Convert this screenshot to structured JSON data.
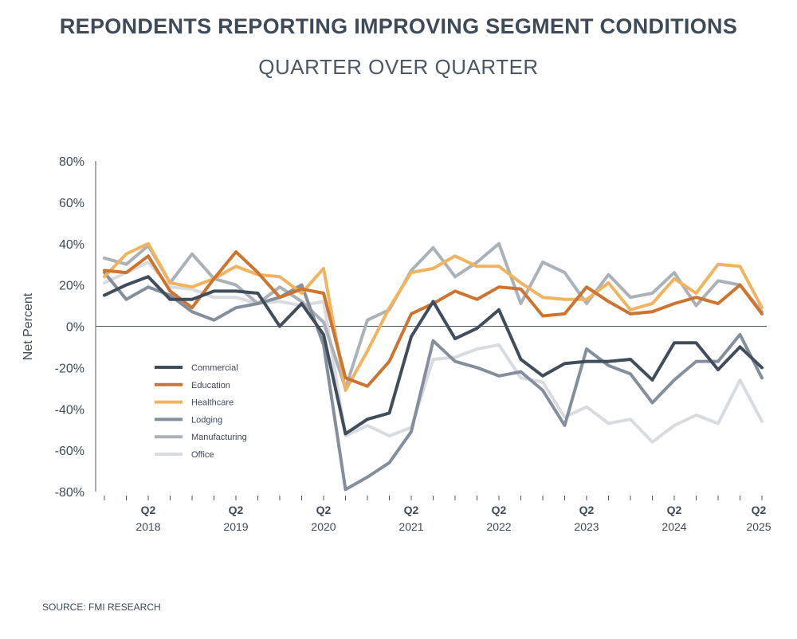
{
  "title": "REPONDENTS REPORTING IMPROVING SEGMENT CONDITIONS",
  "subtitle": "QUARTER OVER QUARTER",
  "source": "SOURCE: FMI RESEARCH",
  "chart_data": {
    "type": "line",
    "title": "REPONDENTS REPORTING IMPROVING SEGMENT CONDITIONS",
    "subtitle": "QUARTER OVER QUARTER",
    "xlabel": "",
    "ylabel": "Net Percent",
    "ylim": [
      -80,
      80
    ],
    "yticks": [
      80,
      60,
      40,
      20,
      0,
      -20,
      -40,
      -60,
      -80
    ],
    "ytick_labels": [
      "80%",
      "60%",
      "40%",
      "20%",
      "0%",
      "-20%",
      "-40%",
      "-60%",
      "-80%"
    ],
    "x_quarters": [
      "2017 Q4",
      "2018 Q1",
      "2018 Q2",
      "2018 Q3",
      "2018 Q4",
      "2019 Q1",
      "2019 Q2",
      "2019 Q3",
      "2019 Q4",
      "2020 Q1",
      "2020 Q2",
      "2020 Q3",
      "2020 Q4",
      "2021 Q1",
      "2021 Q2",
      "2021 Q3",
      "2021 Q4",
      "2022 Q1",
      "2022 Q2",
      "2022 Q3",
      "2022 Q4",
      "2023 Q1",
      "2023 Q2",
      "2023 Q3",
      "2023 Q4",
      "2024 Q1",
      "2024 Q2",
      "2024 Q3",
      "2024 Q4",
      "2025 Q1",
      "2025 Q2"
    ],
    "x_tick_labels": [
      {
        "q": "Q2",
        "year": "2018",
        "index": 2
      },
      {
        "q": "Q2",
        "year": "2019",
        "index": 6
      },
      {
        "q": "Q2",
        "year": "2020",
        "index": 10
      },
      {
        "q": "Q2",
        "year": "2021",
        "index": 14
      },
      {
        "q": "Q2",
        "year": "2022",
        "index": 18
      },
      {
        "q": "Q2",
        "year": "2023",
        "index": 22
      },
      {
        "q": "Q2",
        "year": "2024",
        "index": 26
      },
      {
        "q": "Q2",
        "year": "2025",
        "index": 30
      }
    ],
    "legend_position": "center-left",
    "series": [
      {
        "name": "Commercial",
        "color": "#414d5b",
        "values": [
          15,
          20,
          24,
          13,
          13,
          17,
          17,
          16,
          0,
          11,
          -4,
          -52,
          -45,
          -42,
          -5,
          12,
          -6,
          -1,
          8,
          -16,
          -24,
          -18,
          -17,
          -17,
          -16,
          -26,
          -8,
          -8,
          -21,
          -10,
          -20
        ]
      },
      {
        "name": "Education",
        "color": "#cc7430",
        "values": [
          27,
          26,
          34,
          17,
          9,
          23,
          36,
          26,
          14,
          18,
          16,
          -25,
          -29,
          -17,
          6,
          11,
          17,
          13,
          19,
          18,
          5,
          6,
          19,
          12,
          6,
          7,
          11,
          14,
          11,
          20,
          6
        ]
      },
      {
        "name": "Healthcare",
        "color": "#f0b45f",
        "values": [
          24,
          35,
          40,
          21,
          19,
          23,
          29,
          25,
          24,
          16,
          28,
          -31,
          -12,
          9,
          26,
          28,
          34,
          29,
          29,
          21,
          14,
          13,
          13,
          21,
          8,
          11,
          23,
          16,
          30,
          29,
          9
        ]
      },
      {
        "name": "Lodging",
        "color": "#858f9c",
        "values": [
          26,
          13,
          19,
          15,
          7,
          3,
          9,
          11,
          14,
          20,
          -9,
          -79,
          -73,
          -66,
          -51,
          -7,
          -17,
          -20,
          -24,
          -22,
          -31,
          -48,
          -11,
          -19,
          -23,
          -37,
          -26,
          -17,
          -17,
          -4,
          -25
        ]
      },
      {
        "name": "Manufacturing",
        "color": "#abb1b8",
        "values": [
          33,
          30,
          39,
          21,
          35,
          23,
          20,
          11,
          19,
          12,
          2,
          -30,
          3,
          8,
          27,
          38,
          24,
          31,
          40,
          11,
          31,
          26,
          11,
          25,
          14,
          16,
          26,
          10,
          22,
          20,
          7
        ]
      },
      {
        "name": "Office",
        "color": "#d8dbdf",
        "values": [
          21,
          26,
          31,
          19,
          18,
          14,
          14,
          11,
          12,
          10,
          12,
          -53,
          -48,
          -53,
          -49,
          -16,
          -15,
          -11,
          -9,
          -25,
          -27,
          -44,
          -39,
          -47,
          -45,
          -56,
          -48,
          -43,
          -47,
          -26,
          -46
        ]
      }
    ]
  }
}
